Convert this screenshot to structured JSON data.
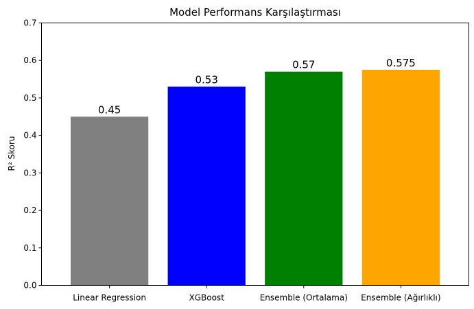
{
  "chart_data": {
    "type": "bar",
    "title": "Model Performans Karşılaştırması",
    "xlabel": "",
    "ylabel": "R² Skoru",
    "ylim": [
      0,
      0.7
    ],
    "yticks": [
      0.0,
      0.1,
      0.2,
      0.3,
      0.4,
      0.5,
      0.6,
      0.7
    ],
    "ytick_labels": [
      "0.0",
      "0.1",
      "0.2",
      "0.3",
      "0.4",
      "0.5",
      "0.6",
      "0.7"
    ],
    "categories": [
      "Linear Regression",
      "XGBoost",
      "Ensemble (Ortalama)",
      "Ensemble (Ağırlıklı)"
    ],
    "values": [
      0.45,
      0.53,
      0.57,
      0.575
    ],
    "data_labels": [
      "0.45",
      "0.53",
      "0.57",
      "0.575"
    ],
    "colors": [
      "#808080",
      "#0000ff",
      "#008000",
      "#ffa500"
    ],
    "grid": false,
    "legend": "none"
  }
}
